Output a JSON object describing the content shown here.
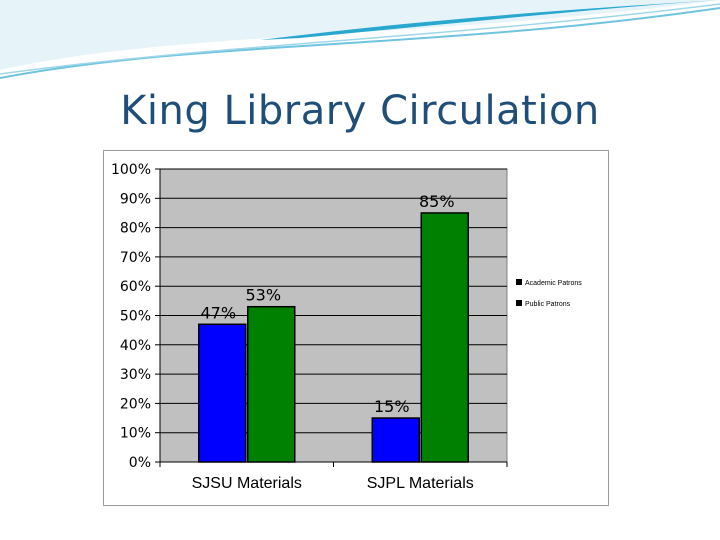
{
  "slide": {
    "title": "King Library Circulation"
  },
  "chart_data": {
    "type": "bar",
    "categories": [
      "SJSU Materials",
      "SJPL Materials"
    ],
    "series": [
      {
        "name": "Academic Patrons",
        "values": [
          47,
          15
        ],
        "labels": [
          "47%",
          "15%"
        ],
        "color": "#0000ff"
      },
      {
        "name": "Public Patrons",
        "values": [
          53,
          85
        ],
        "labels": [
          "53%",
          "85%"
        ],
        "color": "#008000"
      }
    ],
    "y_ticks": [
      "0%",
      "10%",
      "20%",
      "30%",
      "40%",
      "50%",
      "60%",
      "70%",
      "80%",
      "90%",
      "100%"
    ],
    "ylim": [
      0,
      100
    ],
    "grid": true,
    "plot_background": "#c0c0c0",
    "legend_position": "right"
  }
}
